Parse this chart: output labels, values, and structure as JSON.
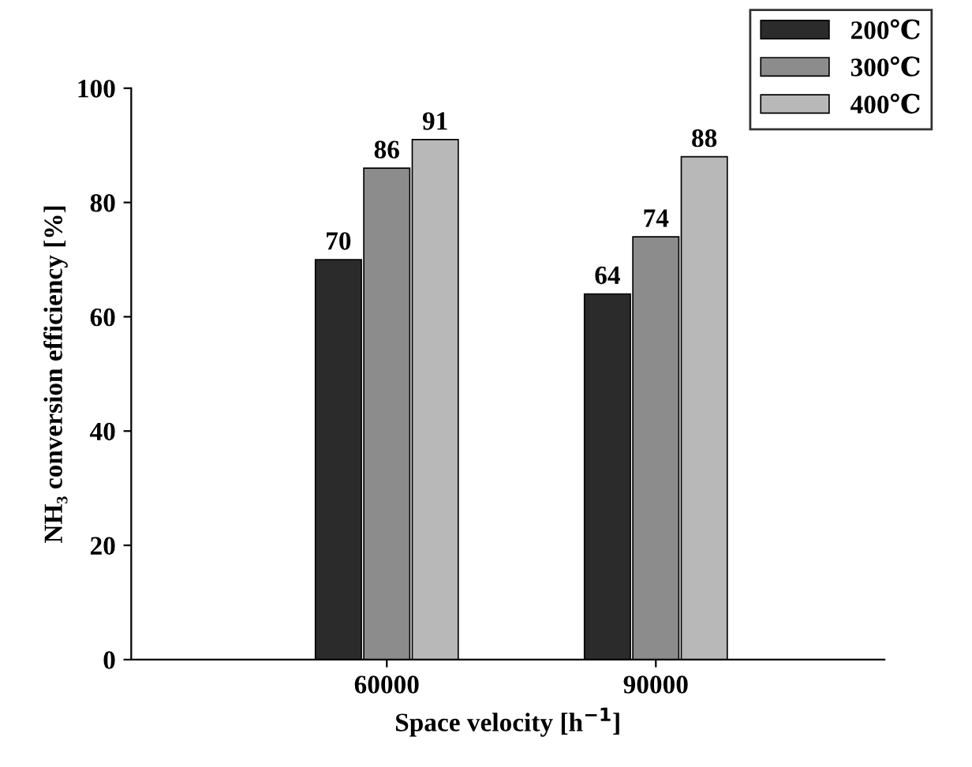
{
  "chart_data": {
    "type": "bar",
    "xlabel": "Space velocity [h$^{−1}$]",
    "ylabel": "NH₃ conversion efficiency [%]",
    "categories": [
      "60000",
      "90000"
    ],
    "series": [
      {
        "name": "200℃",
        "color": "#2b2b2b",
        "values": [
          70,
          64
        ]
      },
      {
        "name": "300℃",
        "color": "#8c8c8c",
        "values": [
          86,
          74
        ]
      },
      {
        "name": "400℃",
        "color": "#b8b8b8",
        "values": [
          91,
          88
        ]
      }
    ],
    "ylim": [
      0,
      100
    ],
    "yticks": [
      0,
      20,
      40,
      60,
      80,
      100
    ],
    "grid": false,
    "legend": "top right",
    "data_labels": true
  }
}
